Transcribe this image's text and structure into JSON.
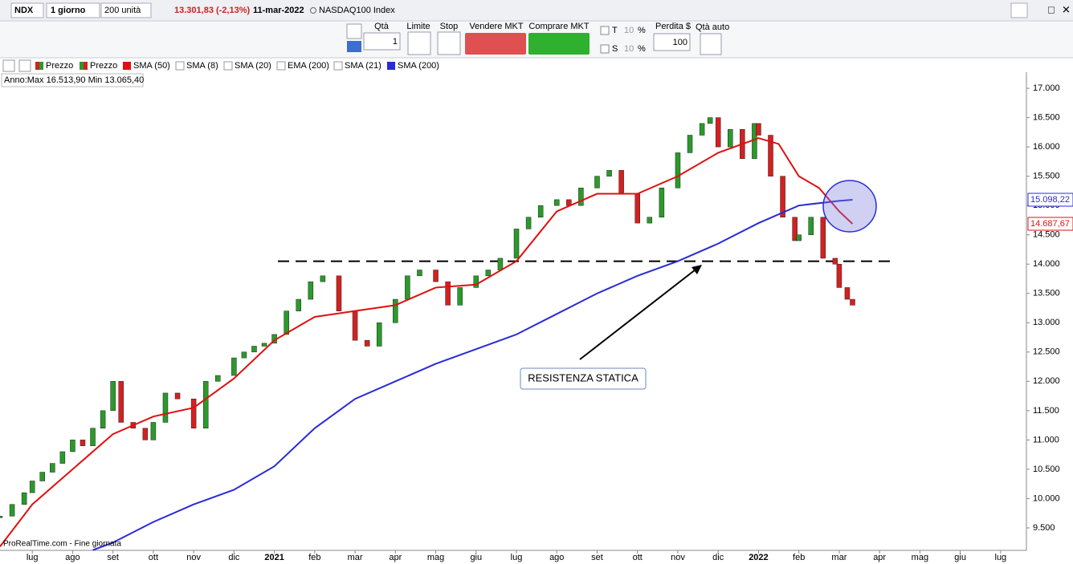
{
  "toolbar": {
    "symbol": "NDX",
    "period": "1 giorno",
    "units": "200 unità",
    "price": "13.301,83 (-2,13%)",
    "date": "11-mar-2022",
    "instrument": "NASDAQ100 Index",
    "qty_label": "Qtà",
    "qty": "1",
    "limit": "Limite",
    "stop": "Stop",
    "sell": "Vendere MKT",
    "buy": "Comprare MKT",
    "t_label": "T",
    "t_value": "10",
    "t_unit": "%",
    "s_label": "S",
    "s_value": "10",
    "s_unit": "%",
    "loss_label": "Perdita $",
    "loss": "100",
    "auto_qty": "Qtà auto"
  },
  "legend": [
    "Prezzo",
    "Prezzo",
    "SMA (50)",
    "SMA (8)",
    "SMA (20)",
    "EMA (200)",
    "SMA (21)",
    "SMA (200)"
  ],
  "range_info": "Anno:Max 16.513,90 Min 13.065,40",
  "footer": "ProRealTime.com - Fine giornata",
  "annotation": "RESISTENZA STATICA",
  "chart_data": {
    "type": "candlestick",
    "xlim": [
      -0.8,
      24.64
    ],
    "ylim": [
      9116,
      17302
    ],
    "xticks": [
      {
        "value": 0,
        "label": "lug"
      },
      {
        "value": 1,
        "label": "ago"
      },
      {
        "value": 2,
        "label": "set"
      },
      {
        "value": 3,
        "label": "ott"
      },
      {
        "value": 4,
        "label": "nov"
      },
      {
        "value": 5,
        "label": "dic"
      },
      {
        "value": 6,
        "label": "2021"
      },
      {
        "value": 7,
        "label": "feb"
      },
      {
        "value": 8,
        "label": "mar"
      },
      {
        "value": 9,
        "label": "apr"
      },
      {
        "value": 10,
        "label": "mag"
      },
      {
        "value": 11,
        "label": "giu"
      },
      {
        "value": 12,
        "label": "lug"
      },
      {
        "value": 13,
        "label": "ago"
      },
      {
        "value": 14,
        "label": "set"
      },
      {
        "value": 15,
        "label": "ott"
      },
      {
        "value": 16,
        "label": "nov"
      },
      {
        "value": 17,
        "label": "dic"
      },
      {
        "value": 18,
        "label": "2022"
      },
      {
        "value": 19,
        "label": "feb"
      },
      {
        "value": 20,
        "label": "mar"
      },
      {
        "value": 21,
        "label": "apr"
      },
      {
        "value": 22,
        "label": "mag"
      },
      {
        "value": 23,
        "label": "giu"
      },
      {
        "value": 24,
        "label": "lug"
      }
    ],
    "yticks": [
      {
        "value": 9500,
        "label": "9.500"
      },
      {
        "value": 10000,
        "label": "10.000"
      },
      {
        "value": 10500,
        "label": "10.500"
      },
      {
        "value": 11000,
        "label": "11.000"
      },
      {
        "value": 11500,
        "label": "11.500"
      },
      {
        "value": 12000,
        "label": "12.000"
      },
      {
        "value": 12500,
        "label": "12.500"
      },
      {
        "value": 13000,
        "label": "13.000"
      },
      {
        "value": 13500,
        "label": "13.500"
      },
      {
        "value": 14000,
        "label": "14.000"
      },
      {
        "value": 14500,
        "label": "14.500"
      },
      {
        "value": 15000,
        "label": "15.000"
      },
      {
        "value": 15500,
        "label": "15.500"
      },
      {
        "value": 16000,
        "label": "16.000"
      },
      {
        "value": 16500,
        "label": "16.500"
      },
      {
        "value": 17000,
        "label": "17.000"
      }
    ],
    "resistance_level": 14050,
    "up_color": "#2a9a2a",
    "down_color": "#d42020",
    "price": {
      "x": [
        -0.8,
        -0.5,
        -0.2,
        0,
        0.25,
        0.5,
        0.75,
        1,
        1.25,
        1.5,
        1.75,
        2,
        2.2,
        2.5,
        2.8,
        3,
        3.3,
        3.6,
        4,
        4.3,
        4.6,
        5,
        5.25,
        5.5,
        5.75,
        6,
        6.3,
        6.6,
        6.9,
        7.2,
        7.6,
        8,
        8.3,
        8.6,
        9,
        9.3,
        9.6,
        10,
        10.3,
        10.6,
        11,
        11.3,
        11.6,
        12,
        12.3,
        12.6,
        13,
        13.3,
        13.6,
        14,
        14.3,
        14.6,
        15,
        15.3,
        15.6,
        16,
        16.3,
        16.6,
        16.8,
        17,
        17.3,
        17.6,
        17.9,
        18,
        18.3,
        18.6,
        18.9,
        19,
        19.3,
        19.6,
        19.9,
        20,
        20.2,
        20.33
      ],
      "values": [
        9700,
        9900,
        10100,
        10300,
        10450,
        10600,
        10800,
        11000,
        10900,
        11200,
        11500,
        12000,
        11300,
        11200,
        11000,
        11300,
        11800,
        11700,
        11200,
        12000,
        12100,
        12400,
        12500,
        12600,
        12650,
        12800,
        13200,
        13400,
        13700,
        13800,
        13200,
        12700,
        12600,
        13000,
        13400,
        13800,
        13900,
        13700,
        13300,
        13600,
        13800,
        13900,
        14100,
        14600,
        14800,
        15000,
        15100,
        15000,
        15300,
        15500,
        15600,
        15200,
        14700,
        14800,
        15300,
        15900,
        16200,
        16400,
        16500,
        16000,
        16300,
        15800,
        16400,
        16200,
        15500,
        14800,
        14400,
        14500,
        14800,
        14100,
        14000,
        13600,
        13400,
        13300
      ]
    },
    "series": [
      {
        "name": "SMA (50)",
        "color": "#e01010",
        "x": [
          -0.8,
          0,
          1,
          2,
          3,
          4,
          5,
          6,
          7,
          8,
          9,
          10,
          11,
          12,
          13,
          14,
          15,
          16,
          17,
          18,
          18.5,
          19,
          19.5,
          20,
          20.33
        ],
        "values": [
          9180,
          9900,
          10500,
          11100,
          11400,
          11550,
          12050,
          12700,
          13100,
          13200,
          13300,
          13600,
          13650,
          14050,
          14900,
          15200,
          15200,
          15500,
          15900,
          16150,
          16050,
          15500,
          15300,
          14900,
          14687.67
        ],
        "last_label": "14.687,67"
      },
      {
        "name": "SMA (200)",
        "color": "#2a2ad8",
        "x": [
          1.5,
          2,
          3,
          4,
          5,
          6,
          7,
          8,
          9,
          10,
          11,
          12,
          13,
          14,
          15,
          16,
          17,
          18,
          19,
          20,
          20.33
        ],
        "values": [
          9120,
          9250,
          9600,
          9900,
          10150,
          10550,
          11200,
          11700,
          12000,
          12300,
          12550,
          12800,
          13150,
          13500,
          13800,
          14050,
          14350,
          14700,
          15000,
          15080,
          15098.22
        ],
        "last_label": "15.098,22"
      }
    ]
  }
}
